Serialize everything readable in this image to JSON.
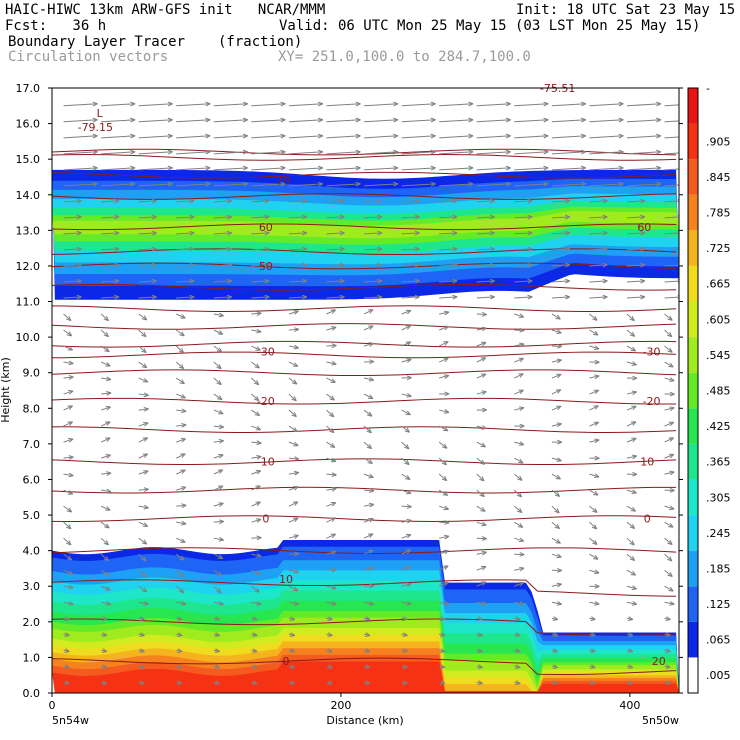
{
  "header": {
    "left1": "HAIC-HIWC 13km ARW-GFS init   NCAR/MMM",
    "left2": "Fcst:   36 h",
    "right1": "Init: 18 UTC Sat 23 May 15",
    "right2": "Valid: 06 UTC Mon 25 May 15 (03 LST Mon 25 May 15)",
    "field1": "Boundary Layer Tracer",
    "field1_units": "(fraction)",
    "field2": "Circulation vectors",
    "xy": "XY= 251.0,100.0 to 284.7,100.0"
  },
  "chart_data": {
    "type": "heatmap",
    "title": "Boundary Layer Tracer",
    "units": "(fraction)",
    "xlabel": "Distance (km)",
    "ylabel": "Height (km)",
    "xlim": [
      0,
      434
    ],
    "ylim": [
      0,
      17
    ],
    "x_ticks": [
      "0",
      "200",
      "400"
    ],
    "x_end_labels": [
      "5n54w",
      "5n50w"
    ],
    "y_ticks": [
      "0.0",
      "1.0",
      "2.0",
      "3.0",
      "4.0",
      "5.0",
      "6.0",
      "7.0",
      "8.0",
      "9.0",
      "10.0",
      "11.0",
      "12.0",
      "13.0",
      "14.0",
      "15.0",
      "16.0",
      "17.0"
    ],
    "colorbar": {
      "labels": [
        ".005",
        ".065",
        ".125",
        ".185",
        ".245",
        ".305",
        ".365",
        ".425",
        ".485",
        ".545",
        ".605",
        ".665",
        ".725",
        ".785",
        ".845",
        ".905",
        "-"
      ],
      "colors": [
        "#ffffff",
        "#0a28e6",
        "#1e64f5",
        "#1ea0f5",
        "#1ed2f0",
        "#1ee6c8",
        "#1ee68c",
        "#28e650",
        "#64eb28",
        "#a0eb1e",
        "#d2eb1e",
        "#f0dc1e",
        "#f5b41e",
        "#f5821e",
        "#f55a1e",
        "#f53214",
        "#eb1414"
      ]
    },
    "contour_labels": [
      {
        "text": "70",
        "x": 160,
        "y": 14.4
      },
      {
        "text": "60",
        "x": 148,
        "y": 13.1
      },
      {
        "text": "60",
        "x": 410,
        "y": 13.1
      },
      {
        "text": "50",
        "x": 148,
        "y": 12.0
      },
      {
        "text": "-30",
        "x": 148,
        "y": 9.6
      },
      {
        "text": "-30",
        "x": 415,
        "y": 9.6
      },
      {
        "text": "-20",
        "x": 148,
        "y": 8.2
      },
      {
        "text": "-20",
        "x": 415,
        "y": 8.2
      },
      {
        "text": "-10",
        "x": 148,
        "y": 6.5
      },
      {
        "text": "10",
        "x": 412,
        "y": 6.5
      },
      {
        "text": "0",
        "x": 148,
        "y": 4.9
      },
      {
        "text": "0",
        "x": 412,
        "y": 4.9
      },
      {
        "text": "10",
        "x": 162,
        "y": 3.2
      },
      {
        "text": "0",
        "x": 162,
        "y": 0.9
      },
      {
        "text": "20",
        "x": 420,
        "y": 0.9
      }
    ],
    "annotations": [
      {
        "text": "L",
        "x": 33,
        "y": 16.3
      },
      {
        "text": "-79.15",
        "x": 30,
        "y": 15.9
      },
      {
        "text": "-75.51",
        "x": 350,
        "y": 17.0
      }
    ]
  }
}
